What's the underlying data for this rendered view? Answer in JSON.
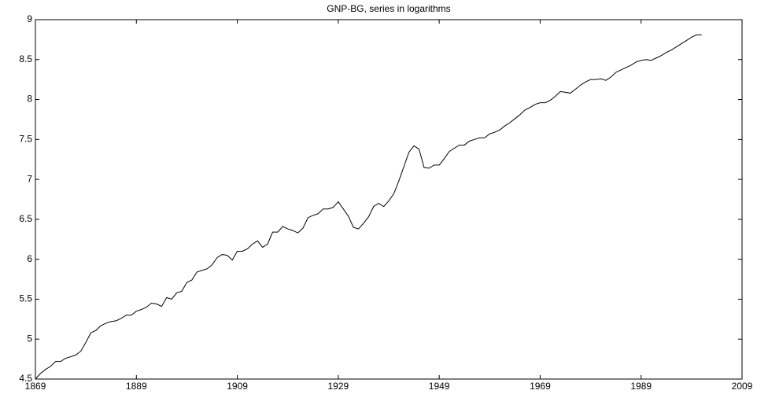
{
  "chart_data": {
    "type": "line",
    "title": "GNP-BG, series in logarithms",
    "color": "#000000",
    "x": [
      1869,
      1870,
      1871,
      1872,
      1873,
      1874,
      1875,
      1876,
      1877,
      1878,
      1879,
      1880,
      1881,
      1882,
      1883,
      1884,
      1885,
      1886,
      1887,
      1888,
      1889,
      1890,
      1891,
      1892,
      1893,
      1894,
      1895,
      1896,
      1897,
      1898,
      1899,
      1900,
      1901,
      1902,
      1903,
      1904,
      1905,
      1906,
      1907,
      1908,
      1909,
      1910,
      1911,
      1912,
      1913,
      1914,
      1915,
      1916,
      1917,
      1918,
      1919,
      1920,
      1921,
      1922,
      1923,
      1924,
      1925,
      1926,
      1927,
      1928,
      1929,
      1930,
      1931,
      1932,
      1933,
      1934,
      1935,
      1936,
      1937,
      1938,
      1939,
      1940,
      1941,
      1942,
      1943,
      1944,
      1945,
      1946,
      1947,
      1948,
      1949,
      1950,
      1951,
      1952,
      1953,
      1954,
      1955,
      1956,
      1957,
      1958,
      1959,
      1960,
      1961,
      1962,
      1963,
      1964,
      1965,
      1966,
      1967,
      1968,
      1969,
      1970,
      1971,
      1972,
      1973,
      1974,
      1975,
      1976,
      1977,
      1978,
      1979,
      1980,
      1981,
      1982,
      1983,
      1984,
      1985,
      1986,
      1987,
      1988,
      1989,
      1990,
      1991,
      1992,
      1993,
      1994,
      1995,
      1996,
      1997,
      1998,
      1999,
      2000,
      2001
    ],
    "values": [
      4.5,
      4.57,
      4.62,
      4.66,
      4.72,
      4.72,
      4.76,
      4.78,
      4.8,
      4.85,
      4.96,
      5.08,
      5.11,
      5.17,
      5.2,
      5.22,
      5.23,
      5.26,
      5.3,
      5.3,
      5.35,
      5.37,
      5.4,
      5.45,
      5.44,
      5.41,
      5.52,
      5.5,
      5.58,
      5.6,
      5.71,
      5.74,
      5.84,
      5.86,
      5.88,
      5.93,
      6.02,
      6.06,
      6.05,
      5.99,
      6.1,
      6.1,
      6.13,
      6.19,
      6.23,
      6.15,
      6.19,
      6.34,
      6.34,
      6.41,
      6.38,
      6.36,
      6.33,
      6.39,
      6.52,
      6.55,
      6.57,
      6.63,
      6.63,
      6.65,
      6.72,
      6.63,
      6.54,
      6.4,
      6.38,
      6.45,
      6.53,
      6.66,
      6.7,
      6.66,
      6.73,
      6.82,
      6.98,
      7.16,
      7.34,
      7.42,
      7.38,
      7.15,
      7.14,
      7.18,
      7.18,
      7.26,
      7.35,
      7.39,
      7.43,
      7.43,
      7.48,
      7.5,
      7.52,
      7.52,
      7.57,
      7.59,
      7.62,
      7.67,
      7.71,
      7.76,
      7.81,
      7.87,
      7.9,
      7.94,
      7.96,
      7.96,
      7.99,
      8.04,
      8.1,
      8.09,
      8.08,
      8.13,
      8.18,
      8.22,
      8.25,
      8.25,
      8.26,
      8.24,
      8.28,
      8.34,
      8.37,
      8.4,
      8.43,
      8.47,
      8.49,
      8.5,
      8.49,
      8.52,
      8.55,
      8.59,
      8.62,
      8.66,
      8.7,
      8.74,
      8.78,
      8.81,
      8.81
    ],
    "xlim": [
      1869,
      2009
    ],
    "xticks": [
      1869,
      1889,
      1909,
      1929,
      1949,
      1969,
      1989,
      2009
    ],
    "ylim": [
      4.5,
      9
    ],
    "yticks": [
      4.5,
      5,
      5.5,
      6,
      6.5,
      7,
      7.5,
      8,
      8.5,
      9
    ],
    "grid": false
  }
}
